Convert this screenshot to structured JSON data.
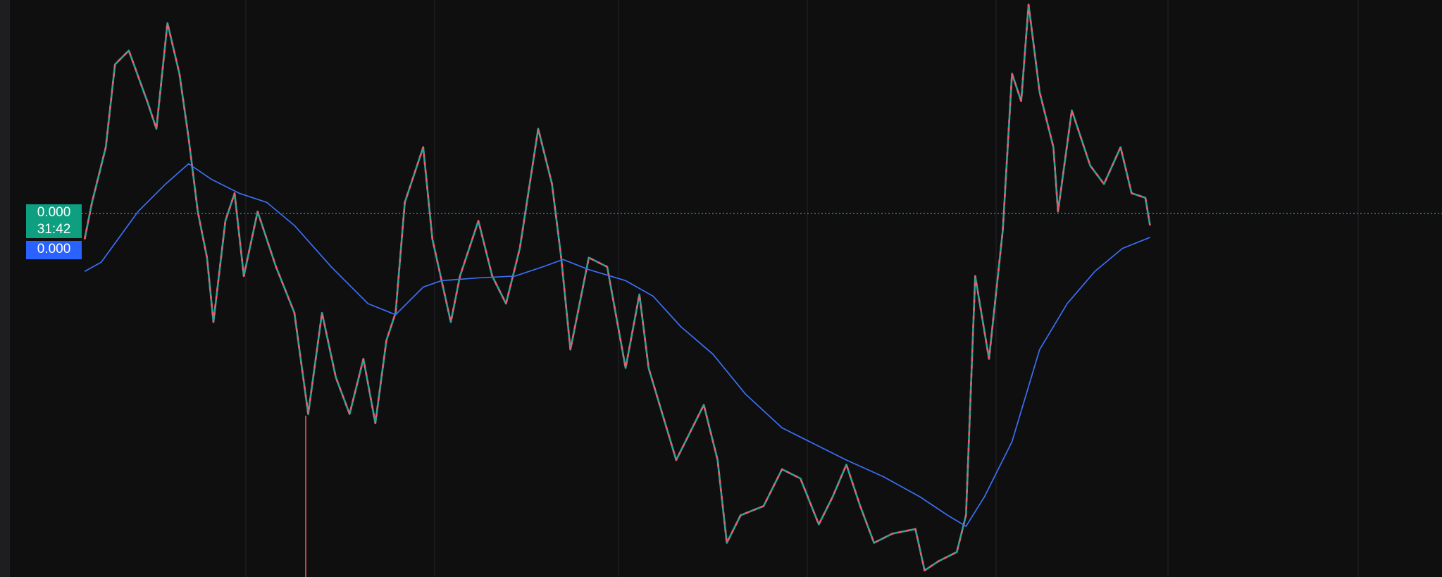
{
  "price_tag": {
    "price": "0.000",
    "countdown": "31:42"
  },
  "ma_tag": {
    "value": "0.000"
  }
}
